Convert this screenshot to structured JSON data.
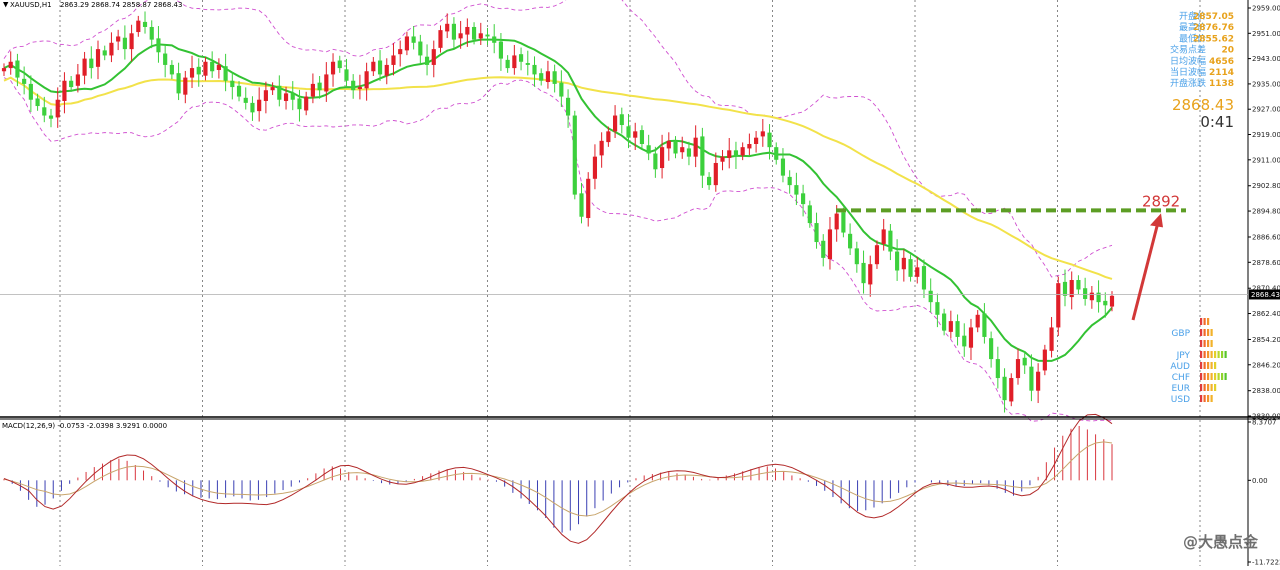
{
  "header": {
    "symbol": "XAUUSD,H1",
    "ohlc": "2863.29 2868.74 2858.87 2868.43"
  },
  "info_panel": {
    "rows": [
      {
        "label": "开盘价",
        "value": "2857.05"
      },
      {
        "label": "最高价",
        "value": "2876.76"
      },
      {
        "label": "最低价",
        "value": "2855.62"
      },
      {
        "label": "交易点差",
        "value": "20"
      },
      {
        "label": "日均波幅",
        "value": "4656"
      },
      {
        "label": "当日波幅",
        "value": "2114"
      },
      {
        "label": "开盘涨跌",
        "value": "1138"
      }
    ],
    "big_price": "2868.43",
    "timer": "0:41"
  },
  "colors": {
    "up": "#e01e28",
    "down": "#3cd03c",
    "ma_fast": "#33c233",
    "ma_slow": "#f2e24a",
    "bands": "#d04fd0",
    "annotation": "#d23838",
    "target_line": "#5c9d24",
    "label_value": "#e8a21c",
    "label_text": "#4aa0e8"
  },
  "annotation": {
    "target_label": "2892"
  },
  "currency_strength": {
    "rows": [
      {
        "label": "",
        "bars": [
          "#e03c3c",
          "#f26a2a",
          "#f2942a"
        ]
      },
      {
        "label": "GBP",
        "bars": [
          "#e03c3c",
          "#f26a2a",
          "#f2942a",
          "#f2b22a"
        ]
      },
      {
        "label": "",
        "bars": [
          "#e03c3c",
          "#f26a2a",
          "#f2942a",
          "#f2b22a"
        ]
      },
      {
        "label": "JPY",
        "bars": [
          "#e03c3c",
          "#f26a2a",
          "#f2942a",
          "#f2b22a",
          "#e2d02a",
          "#b8d82a",
          "#8ed42a",
          "#58c62a"
        ]
      },
      {
        "label": "AUD",
        "bars": [
          "#e03c3c",
          "#f26a2a",
          "#f2942a",
          "#f2b22a",
          "#e2d02a"
        ]
      },
      {
        "label": "CHF",
        "bars": [
          "#e03c3c",
          "#f26a2a",
          "#f2942a",
          "#f2b22a",
          "#e2d02a",
          "#b8d82a",
          "#8ed42a",
          "#58c62a"
        ]
      },
      {
        "label": "EUR",
        "bars": [
          "#e03c3c",
          "#f26a2a",
          "#f2942a",
          "#f2b22a",
          "#e2d02a"
        ]
      },
      {
        "label": "USD",
        "bars": [
          "#e03c3c",
          "#f26a2a",
          "#f2942a",
          "#f2b22a"
        ]
      }
    ]
  },
  "watermark": "@大愚点金",
  "chart_data": [
    {
      "type": "candlestick",
      "ylim": [
        2830.0,
        2959.0
      ],
      "y_ticks": [
        "2959.00",
        "2951.00",
        "2943.00",
        "2935.00",
        "2927.00",
        "2919.00",
        "2911.00",
        "2902.80",
        "2894.80",
        "2886.60",
        "2878.60",
        "2870.40",
        "2862.40",
        "2854.20",
        "2846.20",
        "2838.00",
        "2830.00"
      ],
      "last_price": "2868.43",
      "target_level": 2895,
      "vertical_grid": 9,
      "series_close": [
        2940,
        2942,
        2937,
        2935,
        2930,
        2928,
        2925,
        2924,
        2930,
        2936,
        2934,
        2938,
        2943,
        2940,
        2946,
        2944,
        2948,
        2950,
        2946,
        2951,
        2955,
        2953,
        2949,
        2945,
        2941,
        2938,
        2932,
        2937,
        2940,
        2938,
        2942,
        2939,
        2941,
        2936,
        2934,
        2931,
        2929,
        2926,
        2930,
        2933,
        2934,
        2930,
        2932,
        2930,
        2927,
        2931,
        2935,
        2933,
        2938,
        2942,
        2940,
        2936,
        2933,
        2934,
        2939,
        2942,
        2938,
        2941,
        2944,
        2946,
        2950,
        2948,
        2944,
        2941,
        2946,
        2952,
        2954,
        2949,
        2951,
        2953,
        2949,
        2951,
        2950,
        2948,
        2943,
        2940,
        2944,
        2942,
        2941,
        2938,
        2936,
        2939,
        2935,
        2931,
        2925,
        2900,
        2893,
        2905,
        2912,
        2917,
        2920,
        2925,
        2922,
        2918,
        2920,
        2916,
        2913,
        2908,
        2915,
        2917,
        2913,
        2915,
        2912,
        2918,
        2906,
        2903,
        2910,
        2912,
        2914,
        2912,
        2915,
        2916,
        2918,
        2920,
        2915,
        2911,
        2906,
        2903,
        2900,
        2897,
        2891,
        2885,
        2880,
        2889,
        2894,
        2888,
        2883,
        2878,
        2872,
        2878,
        2884,
        2889,
        2882,
        2876,
        2880,
        2874,
        2877,
        2870,
        2866,
        2862,
        2857,
        2860,
        2855,
        2852,
        2858,
        2862,
        2855,
        2848,
        2842,
        2835,
        2842,
        2848,
        2846,
        2838,
        2844,
        2851,
        2858,
        2872,
        2868,
        2873,
        2870,
        2867,
        2869,
        2866,
        2865,
        2868
      ],
      "indicators": [
        {
          "name": "MA fast",
          "color": "#33c233"
        },
        {
          "name": "MA slow",
          "color": "#f2e24a"
        },
        {
          "name": "Bands",
          "color": "#d04fd0"
        }
      ]
    },
    {
      "type": "bar",
      "label": "MACD(12,26,9) -0.0753 -2.0398 3.9291 0.0000",
      "ylim": [
        -11.7223,
        8.3707
      ],
      "y_ticks": [
        "8.3707",
        "0.00",
        "-11.7223"
      ],
      "histogram": [
        0.2,
        -0.5,
        -1.5,
        -2.8,
        -3.8,
        -3.5,
        -2.6,
        -1.5,
        -0.5,
        0.4,
        1.2,
        1.9,
        2.4,
        2.9,
        3.1,
        2.8,
        2.2,
        1.4,
        0.6,
        -0.2,
        -1.0,
        -1.6,
        -2.0,
        -2.3,
        -2.5,
        -2.6,
        -2.7,
        -2.5,
        -2.3,
        -2.6,
        -2.9,
        -2.8,
        -2.4,
        -1.9,
        -1.4,
        -0.9,
        -0.3,
        0.3,
        1.0,
        1.7,
        2.0,
        1.7,
        1.2,
        0.7,
        0.3,
        -0.1,
        -0.4,
        -0.6,
        -0.5,
        -0.2,
        0.2,
        0.6,
        1.0,
        1.4,
        1.6,
        1.5,
        1.2,
        0.8,
        0.4,
        0.1,
        -0.2,
        -0.9,
        -1.8,
        -2.6,
        -3.4,
        -4.3,
        -5.4,
        -6.8,
        -7.5,
        -7.2,
        -6.3,
        -5.2,
        -4.0,
        -2.9,
        -1.9,
        -1.0,
        -0.3,
        0.3,
        0.7,
        0.9,
        1.1,
        1.2,
        1.0,
        0.8,
        0.5,
        0.2,
        0.1,
        0.4,
        0.7,
        1.0,
        1.3,
        1.6,
        1.8,
        2.0,
        1.7,
        1.2,
        0.7,
        0.3,
        -0.2,
        -0.8,
        -1.5,
        -2.4,
        -3.3,
        -4.0,
        -4.4,
        -4.3,
        -3.9,
        -3.3,
        -2.6,
        -1.8,
        -1.0,
        -0.3,
        0.0,
        -0.3,
        -0.6,
        -0.8,
        -0.9,
        -0.8,
        -0.6,
        -0.4,
        -0.7,
        -1.2,
        -1.8,
        -2.2,
        -1.6,
        -0.7,
        0.5,
        2.6,
        4.7,
        6.4,
        7.4,
        7.8,
        7.3,
        6.6,
        5.9,
        5.2
      ]
    }
  ]
}
